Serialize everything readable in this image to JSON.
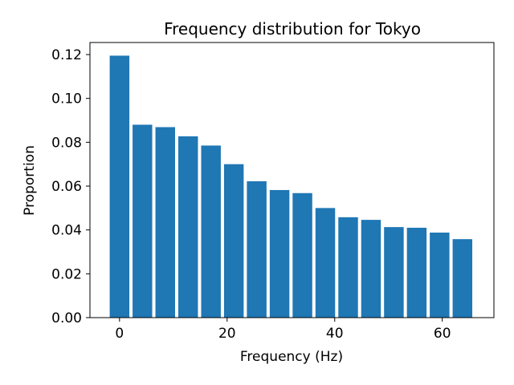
{
  "chart_data": {
    "type": "bar",
    "title": "Frequency distribution for Tokyo",
    "xlabel": "Frequency (Hz)",
    "ylabel": "Proportion",
    "x": [
      0,
      4.25,
      8.5,
      12.75,
      17,
      21.25,
      25.5,
      29.75,
      34,
      38.25,
      42.5,
      46.75,
      51,
      55.25,
      59.5,
      63.75
    ],
    "values": [
      0.1195,
      0.088,
      0.0869,
      0.0827,
      0.0785,
      0.07,
      0.0622,
      0.0582,
      0.0568,
      0.05,
      0.0458,
      0.0446,
      0.0413,
      0.041,
      0.0388,
      0.0358
    ],
    "xlim": [
      -5.5,
      69.6
    ],
    "ylim": [
      0,
      0.1255
    ],
    "xticks": [
      0,
      20,
      40,
      60
    ],
    "xtick_labels": [
      "0",
      "20",
      "40",
      "60"
    ],
    "yticks": [
      0,
      0.02,
      0.04,
      0.06,
      0.08,
      0.1,
      0.12
    ],
    "ytick_labels": [
      "0.00",
      "0.02",
      "0.04",
      "0.06",
      "0.08",
      "0.10",
      "0.12"
    ],
    "bar_color": "#1f77b4",
    "grid": false,
    "legend": "none"
  }
}
